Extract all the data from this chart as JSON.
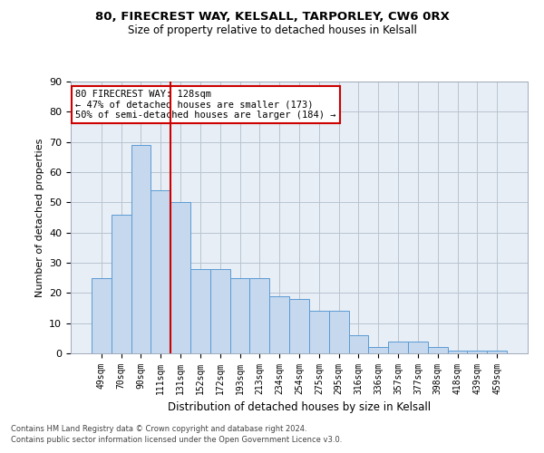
{
  "title1": "80, FIRECREST WAY, KELSALL, TARPORLEY, CW6 0RX",
  "title2": "Size of property relative to detached houses in Kelsall",
  "xlabel": "Distribution of detached houses by size in Kelsall",
  "ylabel": "Number of detached properties",
  "bar_labels": [
    "49sqm",
    "70sqm",
    "90sqm",
    "111sqm",
    "131sqm",
    "152sqm",
    "172sqm",
    "193sqm",
    "213sqm",
    "234sqm",
    "254sqm",
    "275sqm",
    "295sqm",
    "316sqm",
    "336sqm",
    "357sqm",
    "377sqm",
    "398sqm",
    "418sqm",
    "439sqm",
    "459sqm"
  ],
  "bar_values": [
    25,
    46,
    69,
    54,
    50,
    28,
    28,
    25,
    25,
    19,
    18,
    14,
    14,
    6,
    2,
    4,
    4,
    2,
    1,
    1,
    1
  ],
  "bar_color": "#c5d8ed",
  "bar_edge_color": "#5b9bd5",
  "grid_color": "#b8c4d0",
  "bg_color": "#e8eef5",
  "vline_x_idx": 4,
  "vline_color": "#cc0000",
  "annotation_text": "80 FIRECREST WAY: 128sqm\n← 47% of detached houses are smaller (173)\n50% of semi-detached houses are larger (184) →",
  "annotation_box_color": "#ffffff",
  "annotation_box_edge": "#cc0000",
  "ylim": [
    0,
    90
  ],
  "yticks": [
    0,
    10,
    20,
    30,
    40,
    50,
    60,
    70,
    80,
    90
  ],
  "footer1": "Contains HM Land Registry data © Crown copyright and database right 2024.",
  "footer2": "Contains public sector information licensed under the Open Government Licence v3.0."
}
